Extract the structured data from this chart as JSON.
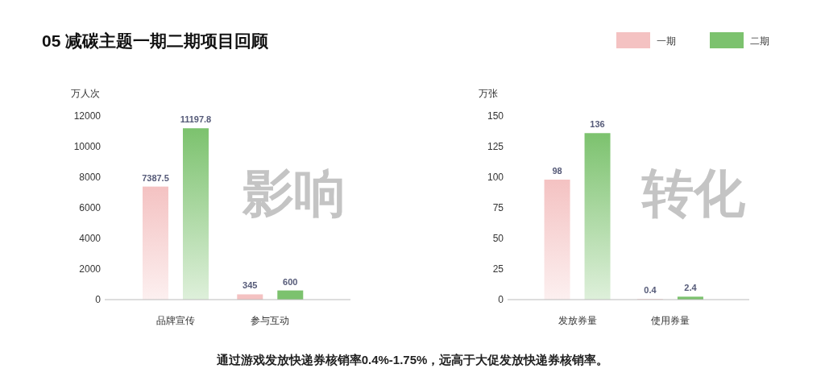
{
  "chart_data": [
    {
      "type": "bar",
      "title": "05 减碳主题一期二期项目回顾",
      "ylabel": "万人次",
      "categories": [
        "品牌宣传",
        "参与互动"
      ],
      "series": [
        {
          "color": "#f4c2c2",
          "values": [
            7387.5,
            345
          ]
        },
        {
          "color": "#7cc26e",
          "values": [
            11197.8,
            600
          ]
        }
      ],
      "ylim": [
        0,
        12000
      ],
      "yticks": [
        0,
        2000,
        4000,
        6000,
        8000,
        10000,
        12000
      ],
      "data_labels": true,
      "annotations": [
        "影响",
        "通过游戏发放快递券核销率0.4%-1.75%，远高于大促发放快递券核销率。"
      ]
    },
    {
      "type": "bar",
      "ylabel": "万张",
      "categories": [
        "发放券量",
        "使用券量"
      ],
      "series": [
        {
          "name": "一期",
          "color": "#f4c2c2",
          "values": [
            98,
            0.4
          ]
        },
        {
          "name": "二期",
          "color": "#7cc26e",
          "values": [
            136,
            2.4
          ]
        }
      ],
      "ylim": [
        0,
        150
      ],
      "yticks": [
        0,
        25,
        50,
        75,
        100,
        125,
        150
      ],
      "data_labels": true,
      "legend": "top right",
      "annotations": [
        "转化"
      ]
    }
  ]
}
